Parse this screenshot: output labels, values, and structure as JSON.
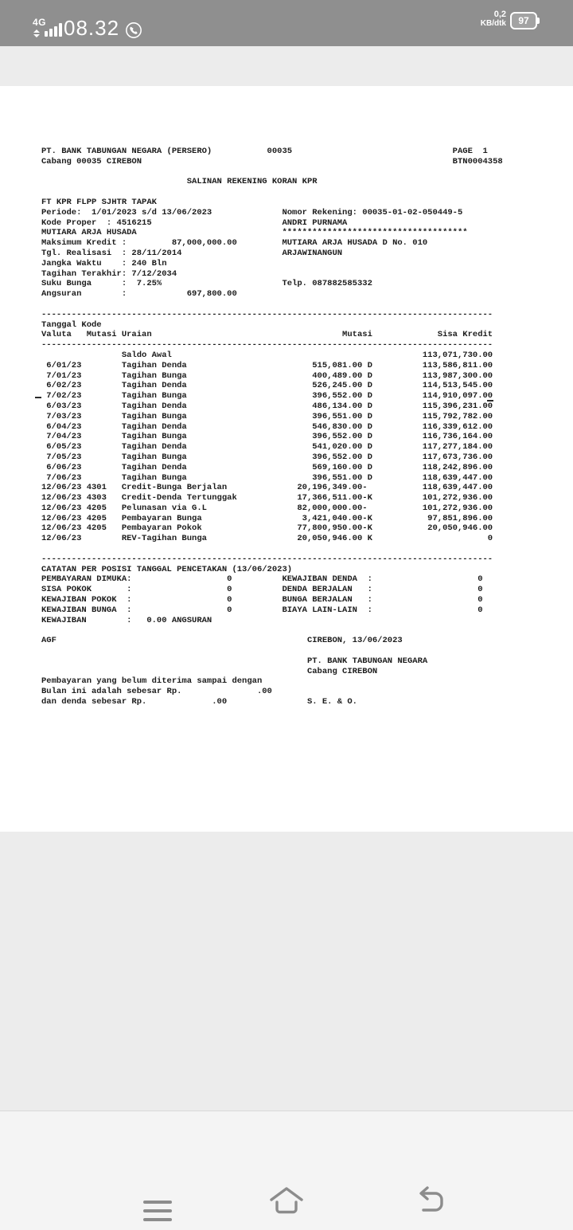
{
  "colors": {
    "status_bar_bg": "#8f8f8f",
    "viewer_bg": "#ececec",
    "page_bg": "#ffffff",
    "nav_bg": "#f4f4f4",
    "nav_icon": "#8c8c8c",
    "doc_text": "#1c1c1c"
  },
  "status_bar": {
    "network": "4G",
    "time": "08.32",
    "speed_value": "0,2",
    "speed_unit": "KB/dtk",
    "battery_percent": "97"
  },
  "icons": [
    "data-activity-arrows",
    "signal-bars",
    "whatsapp",
    "battery",
    "menu",
    "home",
    "back"
  ],
  "doc": {
    "header_lines": [
      [
        [
          0,
          "PT. BANK TABUNGAN NEGARA (PERSERO)"
        ],
        [
          45,
          "00035"
        ],
        [
          82,
          "PAGE  1"
        ]
      ],
      [
        [
          0,
          "Cabang 00035 CIREBON"
        ],
        [
          82,
          "BTN0004358"
        ]
      ],
      [],
      [
        [
          29,
          "SALINAN REKENING KORAN KPR"
        ]
      ],
      [],
      [
        [
          0,
          "FT KPR FLPP SJHTR TAPAK"
        ]
      ],
      [
        [
          0,
          "Periode:  1/01/2023 s/d 13/06/2023"
        ],
        [
          48,
          "Nomor Rekening: 00035-01-02-050449-5"
        ]
      ],
      [
        [
          0,
          "Kode Proper  : 4516215"
        ],
        [
          48,
          "ANDRI PURNAMA"
        ]
      ],
      [
        [
          0,
          "MUTIARA ARJA HUSADA"
        ],
        [
          48,
          "*************************************"
        ]
      ],
      [
        [
          0,
          "Maksimum Kredit :"
        ],
        [
          -38,
          "87,000,000.00"
        ],
        [
          48,
          "MUTIARA ARJA HUSADA D No. 010"
        ]
      ],
      [
        [
          0,
          "Tgl. Realisasi  : 28/11/2014"
        ],
        [
          48,
          "ARJAWINANGUN"
        ]
      ],
      [
        [
          0,
          "Jangka Waktu    : 240 Bln"
        ]
      ],
      [
        [
          0,
          "Tagihan Terakhir: 7/12/2034"
        ]
      ],
      [
        [
          0,
          "Suku Bunga      :  7.25%"
        ],
        [
          48,
          "Telp. 087882585332"
        ]
      ],
      [
        [
          0,
          "Angsuran        :"
        ],
        [
          -38,
          "697,800.00"
        ]
      ],
      []
    ],
    "table": {
      "head1": [
        [
          0,
          "Tanggal Kode"
        ]
      ],
      "head2": [
        [
          0,
          "Valuta"
        ],
        [
          9,
          "Mutasi"
        ],
        [
          16,
          "Uraian"
        ],
        [
          -65,
          "Mutasi"
        ],
        [
          -89,
          "Sisa Kredit"
        ]
      ],
      "opening": {
        "desc": "Saldo Awal",
        "sisa": "113,071,730.00"
      },
      "rows": [
        {
          "date": " 6/01/23",
          "code": "",
          "desc": "Tagihan Denda",
          "mutasi": "515,081.00 D",
          "sisa": "113,586,811.00"
        },
        {
          "date": " 7/01/23",
          "code": "",
          "desc": "Tagihan Bunga",
          "mutasi": "400,489.00 D",
          "sisa": "113,987,300.00"
        },
        {
          "date": " 6/02/23",
          "code": "",
          "desc": "Tagihan Denda",
          "mutasi": "526,245.00 D",
          "sisa": "114,513,545.00"
        },
        {
          "date": " 7/02/23",
          "code": "",
          "desc": "Tagihan Bunga",
          "mutasi": "396,552.00 D",
          "sisa": "114,910,097.00"
        },
        {
          "date": " 6/03/23",
          "code": "",
          "desc": "Tagihan Denda",
          "mutasi": "486,134.00 D",
          "sisa": "115,396,231.00"
        },
        {
          "date": " 7/03/23",
          "code": "",
          "desc": "Tagihan Bunga",
          "mutasi": "396,551.00 D",
          "sisa": "115,792,782.00"
        },
        {
          "date": " 6/04/23",
          "code": "",
          "desc": "Tagihan Denda",
          "mutasi": "546,830.00 D",
          "sisa": "116,339,612.00"
        },
        {
          "date": " 7/04/23",
          "code": "",
          "desc": "Tagihan Bunga",
          "mutasi": "396,552.00 D",
          "sisa": "116,736,164.00"
        },
        {
          "date": " 6/05/23",
          "code": "",
          "desc": "Tagihan Denda",
          "mutasi": "541,020.00 D",
          "sisa": "117,277,184.00"
        },
        {
          "date": " 7/05/23",
          "code": "",
          "desc": "Tagihan Bunga",
          "mutasi": "396,552.00 D",
          "sisa": "117,673,736.00"
        },
        {
          "date": " 6/06/23",
          "code": "",
          "desc": "Tagihan Denda",
          "mutasi": "569,160.00 D",
          "sisa": "118,242,896.00"
        },
        {
          "date": " 7/06/23",
          "code": "",
          "desc": "Tagihan Bunga",
          "mutasi": "396,551.00 D",
          "sisa": "118,639,447.00"
        },
        {
          "date": "12/06/23",
          "code": "4301",
          "desc": "Credit-Bunga Berjalan",
          "mutasi": "20,196,349.00-",
          "sisa": "118,639,447.00"
        },
        {
          "date": "12/06/23",
          "code": "4303",
          "desc": "Credit-Denda Tertunggak",
          "mutasi": "17,366,511.00-K",
          "sisa": "101,272,936.00"
        },
        {
          "date": "12/06/23",
          "code": "4205",
          "desc": "Pelunasan via G.L",
          "mutasi": "82,000,000.00-",
          "sisa": "101,272,936.00"
        },
        {
          "date": "12/06/23",
          "code": "4205",
          "desc": "Pembayaran Bunga",
          "mutasi": "3,421,040.00-K",
          "sisa": "97,851,896.00"
        },
        {
          "date": "12/06/23",
          "code": "4205",
          "desc": "Pembayaran Pokok",
          "mutasi": "77,800,950.00-K",
          "sisa": "20,050,946.00"
        },
        {
          "date": "12/06/23",
          "code": "",
          "desc": "REV-Tagihan Bunga",
          "mutasi": "20,050,946.00 K",
          "sisa": "0"
        }
      ]
    },
    "catatan": {
      "title": "CATATAN PER POSISI TANGGAL PENCETAKAN (13/06/2023)",
      "rows": [
        {
          "l": "PEMBAYARAN DIMUKA:",
          "lv": "0",
          "r": "KEWAJIBAN DENDA  :",
          "rv": "0"
        },
        {
          "l": "SISA POKOK       :",
          "lv": "0",
          "r": "DENDA BERJALAN   :",
          "rv": "0"
        },
        {
          "l": "KEWAJIBAN POKOK  :",
          "lv": "0",
          "r": "BUNGA BERJALAN   :",
          "rv": "0"
        },
        {
          "l": "KEWAJIBAN BUNGA  :",
          "lv": "0",
          "r": "BIAYA LAIN-LAIN  :",
          "rv": "0"
        }
      ],
      "kewajiban": [
        [
          0,
          "KEWAJIBAN        :"
        ],
        [
          21,
          "0.00 ANGSURAN"
        ]
      ]
    },
    "footer_lines": [
      [],
      [
        [
          0,
          "AGF"
        ],
        [
          53,
          "CIREBON, 13/06/2023"
        ]
      ],
      [],
      [
        [
          53,
          "PT. BANK TABUNGAN NEGARA"
        ]
      ],
      [
        [
          53,
          "Cabang CIREBON"
        ]
      ],
      [
        [
          0,
          "Pembayaran yang belum diterima sampai dengan"
        ]
      ],
      [
        [
          0,
          "Bulan ini adalah sebesar Rp."
        ],
        [
          -45,
          ".00"
        ]
      ],
      [
        [
          0,
          "dan denda sebesar Rp."
        ],
        [
          -36,
          ".00"
        ],
        [
          53,
          "S. E. & O."
        ]
      ]
    ]
  }
}
